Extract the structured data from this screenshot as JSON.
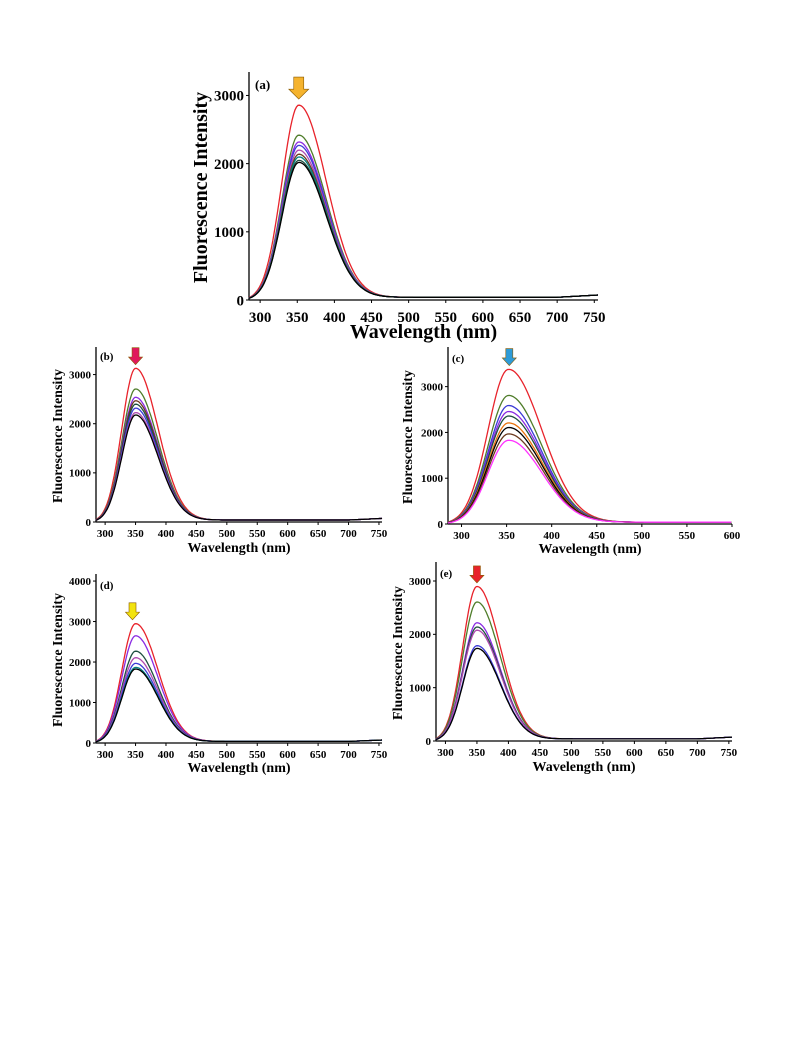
{
  "colors": {
    "curves": [
      "#e8232b",
      "#4f7d2a",
      "#8a2be2",
      "#3b3bd6",
      "#b04ab0",
      "#6b3a1f",
      "#008080",
      "#1f4f3f",
      "#000000",
      "#ff33ff"
    ]
  },
  "chart_data": [
    {
      "panel": "a",
      "panel_label": "(a)",
      "type": "line",
      "xlabel": "Wavelength (nm)",
      "ylabel": "Fluorescence Intensity",
      "xlim": [
        285,
        755
      ],
      "ylim": [
        0,
        3300
      ],
      "xticks": [
        300,
        350,
        400,
        450,
        500,
        550,
        600,
        650,
        700,
        750
      ],
      "yticks": [
        0,
        1000,
        2000,
        3000
      ],
      "peak_x": 352,
      "arrow": {
        "x": 352,
        "color": "#f5b32e"
      },
      "series": [
        {
          "peak": 2830,
          "color": "#e8232b"
        },
        {
          "peak": 2390,
          "color": "#4f7d2a"
        },
        {
          "peak": 2290,
          "color": "#8a2be2"
        },
        {
          "peak": 2240,
          "color": "#3b3bd6"
        },
        {
          "peak": 2170,
          "color": "#b04ab0"
        },
        {
          "peak": 2110,
          "color": "#6b3a1f"
        },
        {
          "peak": 2070,
          "color": "#008080"
        },
        {
          "peak": 2020,
          "color": "#1f4f3f"
        },
        {
          "peak": 1990,
          "color": "#000000"
        }
      ]
    },
    {
      "panel": "b",
      "panel_label": "(b)",
      "type": "line",
      "xlabel": "Wavelength (nm)",
      "ylabel": "Fluorescence Intensity",
      "xlim": [
        285,
        755
      ],
      "ylim": [
        0,
        3500
      ],
      "xticks": [
        300,
        350,
        400,
        450,
        500,
        550,
        600,
        650,
        700,
        750
      ],
      "yticks": [
        0,
        1000,
        2000,
        3000
      ],
      "peak_x": 350,
      "arrow": {
        "x": 350,
        "color": "#e0185c"
      },
      "series": [
        {
          "peak": 3100,
          "color": "#e8232b"
        },
        {
          "peak": 2680,
          "color": "#4f7d2a"
        },
        {
          "peak": 2510,
          "color": "#8a2be2"
        },
        {
          "peak": 2440,
          "color": "#6b3a1f"
        },
        {
          "peak": 2370,
          "color": "#1f4f3f"
        },
        {
          "peak": 2290,
          "color": "#3b3bd6"
        },
        {
          "peak": 2200,
          "color": "#b04ab0"
        },
        {
          "peak": 2150,
          "color": "#000000"
        }
      ]
    },
    {
      "panel": "c",
      "panel_label": "(c)",
      "type": "line",
      "xlabel": "Wavelength (nm)",
      "ylabel": "Fluorescence Intensity",
      "xlim": [
        285,
        600
      ],
      "ylim": [
        0,
        3800
      ],
      "xticks": [
        300,
        350,
        400,
        450,
        500,
        550,
        600
      ],
      "yticks": [
        0,
        1000,
        2000,
        3000
      ],
      "peak_x": 352,
      "arrow": {
        "x": 353,
        "color": "#2e9bd8"
      },
      "series": [
        {
          "peak": 3350,
          "color": "#e8232b"
        },
        {
          "peak": 2780,
          "color": "#4f7d2a"
        },
        {
          "peak": 2560,
          "color": "#3b3bd6"
        },
        {
          "peak": 2430,
          "color": "#8a2be2"
        },
        {
          "peak": 2330,
          "color": "#1f4f3f"
        },
        {
          "peak": 2180,
          "color": "#e8730e"
        },
        {
          "peak": 2080,
          "color": "#000000"
        },
        {
          "peak": 1940,
          "color": "#6b3a1f"
        },
        {
          "peak": 1800,
          "color": "#ff33ff"
        }
      ]
    },
    {
      "panel": "d",
      "panel_label": "(d)",
      "type": "line",
      "xlabel": "Wavelength (nm)",
      "ylabel": "Fluorescence Intensity",
      "xlim": [
        285,
        755
      ],
      "ylim": [
        0,
        4100
      ],
      "xticks": [
        300,
        350,
        400,
        450,
        500,
        550,
        600,
        650,
        700,
        750
      ],
      "yticks": [
        0,
        1000,
        2000,
        3000,
        4000
      ],
      "peak_x": 350,
      "arrow": {
        "x": 345,
        "color": "#f2e30f"
      },
      "series": [
        {
          "peak": 2920,
          "color": "#e8232b"
        },
        {
          "peak": 2620,
          "color": "#8a2be2"
        },
        {
          "peak": 2240,
          "color": "#1f4f3f"
        },
        {
          "peak": 2080,
          "color": "#b04ab0"
        },
        {
          "peak": 1940,
          "color": "#3b3bd6"
        },
        {
          "peak": 1840,
          "color": "#008080"
        },
        {
          "peak": 1800,
          "color": "#000000"
        }
      ]
    },
    {
      "panel": "e",
      "panel_label": "(e)",
      "type": "line",
      "xlabel": "Wavelength (nm)",
      "ylabel": "Fluorescence Intensity",
      "xlim": [
        285,
        755
      ],
      "ylim": [
        0,
        3300
      ],
      "xticks": [
        300,
        350,
        400,
        450,
        500,
        550,
        600,
        650,
        700,
        750
      ],
      "yticks": [
        0,
        1000,
        2000,
        3000
      ],
      "peak_x": 350,
      "arrow": {
        "x": 350,
        "color": "#e8232b"
      },
      "series": [
        {
          "peak": 2870,
          "color": "#e8232b"
        },
        {
          "peak": 2580,
          "color": "#4f7d2a"
        },
        {
          "peak": 2190,
          "color": "#8a2be2"
        },
        {
          "peak": 2110,
          "color": "#1f4f3f"
        },
        {
          "peak": 2050,
          "color": "#b04ab0"
        },
        {
          "peak": 1760,
          "color": "#3b3bd6"
        },
        {
          "peak": 1710,
          "color": "#000000"
        }
      ]
    }
  ]
}
